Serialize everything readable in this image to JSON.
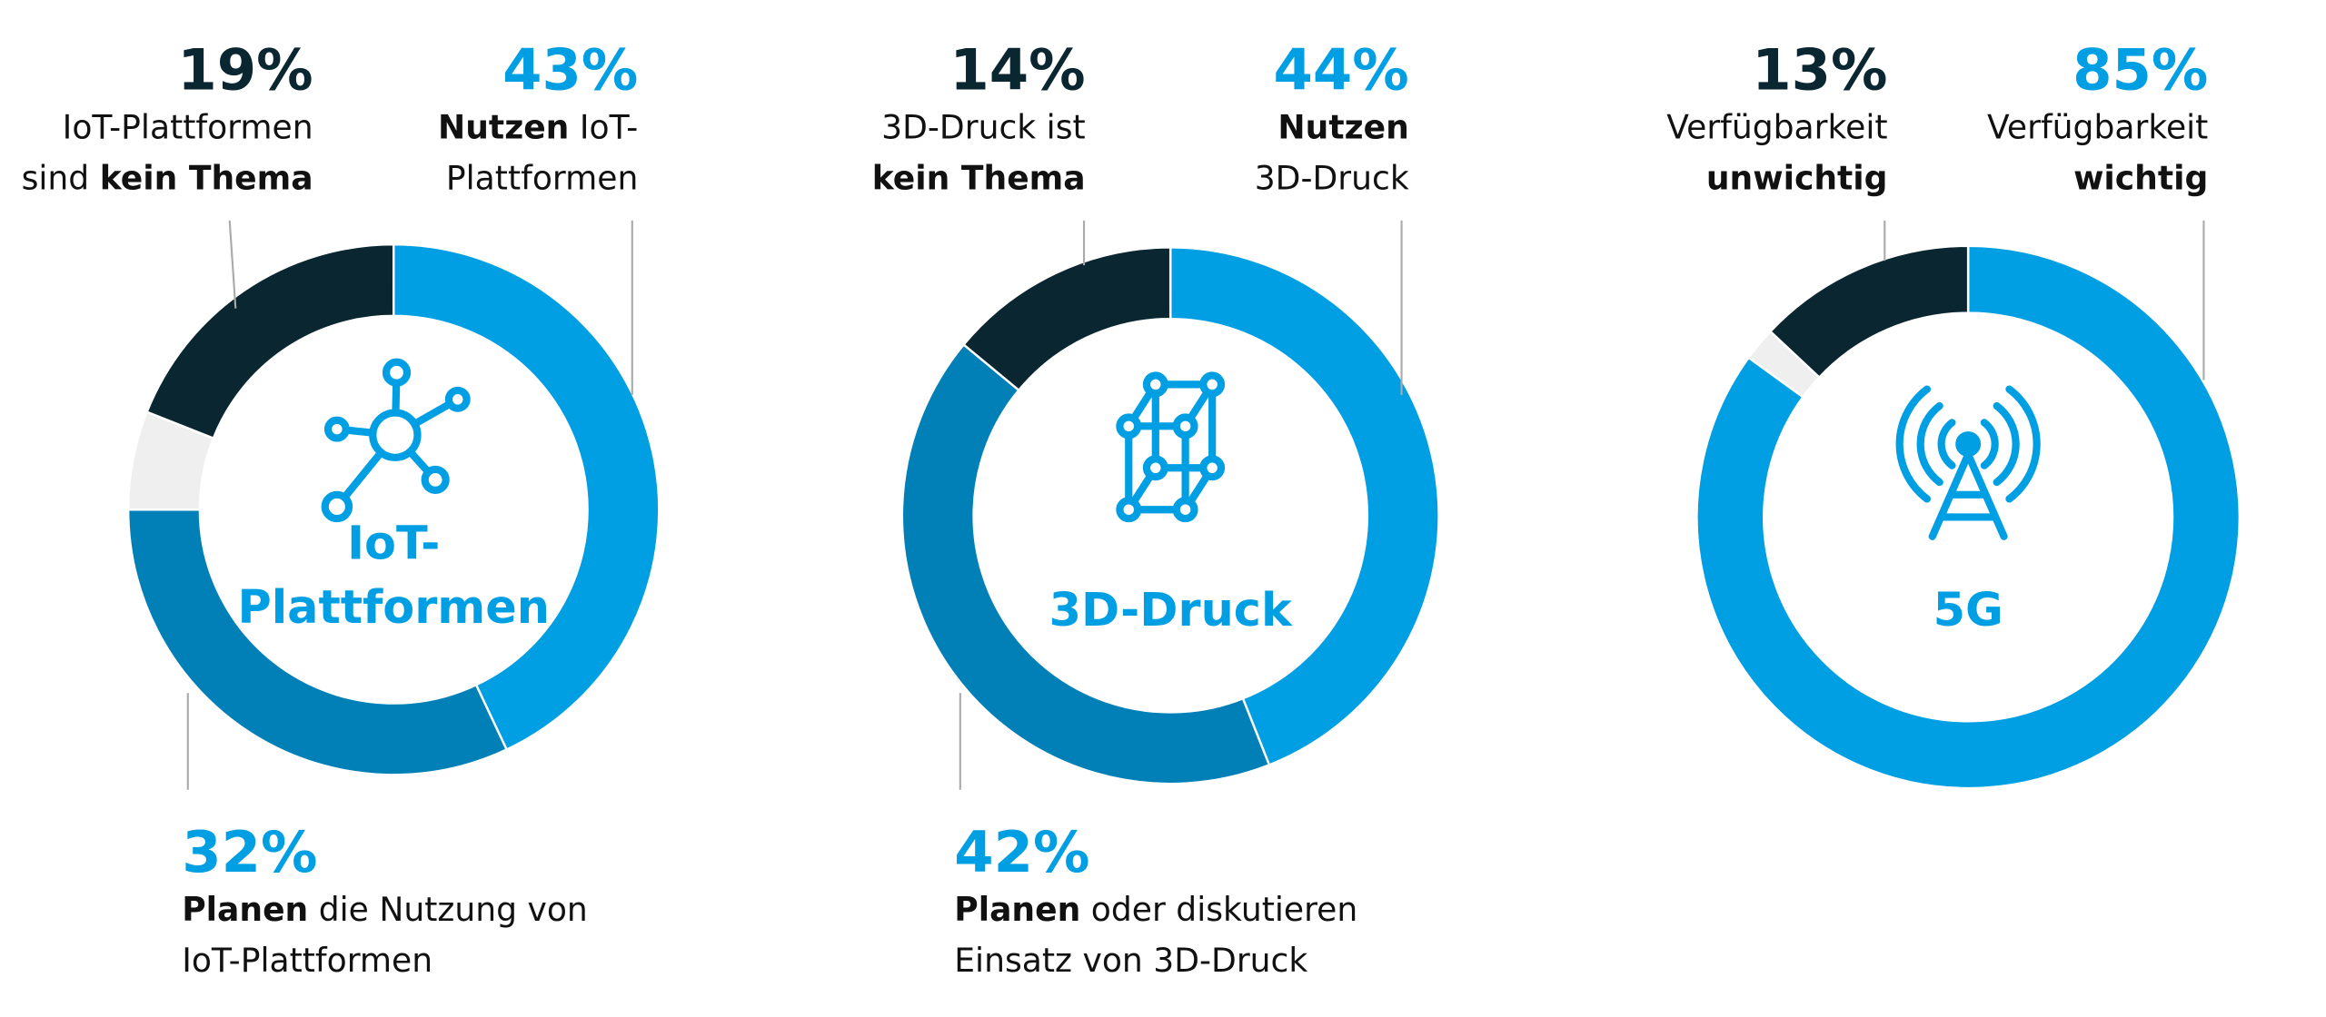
{
  "colors": {
    "primary": "#009fe3",
    "secondary": "#0080b7",
    "dark": "#0a2630",
    "remainder": "#efefef",
    "leader": "#aaaaaa",
    "text": "#111111"
  },
  "chart_data": [
    {
      "type": "pie",
      "center_label": [
        "IoT-",
        "Plattformen"
      ],
      "icon": "network-hub-icon",
      "segments": [
        {
          "value": 43,
          "pct": "43%",
          "color": "#009fe3",
          "label": [
            [
              {
                "t": "Nutzen",
                "b": true
              },
              {
                "t": " IoT-"
              }
            ],
            [
              {
                "t": "Plattformen"
              }
            ]
          ]
        },
        {
          "value": 32,
          "pct": "32%",
          "color": "#0080b7",
          "label": [
            [
              {
                "t": "Planen",
                "b": true
              },
              {
                "t": " die Nutzung von"
              }
            ],
            [
              {
                "t": "IoT-Plattformen"
              }
            ]
          ]
        },
        {
          "value": 19,
          "pct": "19%",
          "color": "#0a2630",
          "label": [
            [
              {
                "t": "IoT-Plattformen"
              }
            ],
            [
              {
                "t": "sind "
              },
              {
                "t": "kein Thema",
                "b": true
              }
            ]
          ]
        }
      ]
    },
    {
      "type": "pie",
      "center_label": [
        "3D-Druck"
      ],
      "icon": "3d-cube-icon",
      "segments": [
        {
          "value": 44,
          "pct": "44%",
          "color": "#009fe3",
          "label": [
            [
              {
                "t": "Nutzen",
                "b": true
              }
            ],
            [
              {
                "t": "3D-Druck"
              }
            ]
          ]
        },
        {
          "value": 42,
          "pct": "42%",
          "color": "#0080b7",
          "label": [
            [
              {
                "t": "Planen",
                "b": true
              },
              {
                "t": " oder diskutieren"
              }
            ],
            [
              {
                "t": "Einsatz von 3D-Druck"
              }
            ]
          ]
        },
        {
          "value": 14,
          "pct": "14%",
          "color": "#0a2630",
          "label": [
            [
              {
                "t": "3D-Druck ist"
              }
            ],
            [
              {
                "t": "kein Thema",
                "b": true
              }
            ]
          ]
        }
      ]
    },
    {
      "type": "pie",
      "center_label": [
        "5G"
      ],
      "icon": "antenna-tower-icon",
      "segments": [
        {
          "value": 85,
          "pct": "85%",
          "color": "#009fe3",
          "label": [
            [
              {
                "t": "Verfügbarkeit"
              }
            ],
            [
              {
                "t": "wichtig",
                "b": true
              }
            ]
          ]
        },
        {
          "value": 13,
          "pct": "13%",
          "color": "#0a2630",
          "label": [
            [
              {
                "t": "Verfügbarkeit"
              }
            ],
            [
              {
                "t": "unwichtig",
                "b": true
              }
            ]
          ]
        }
      ]
    }
  ]
}
